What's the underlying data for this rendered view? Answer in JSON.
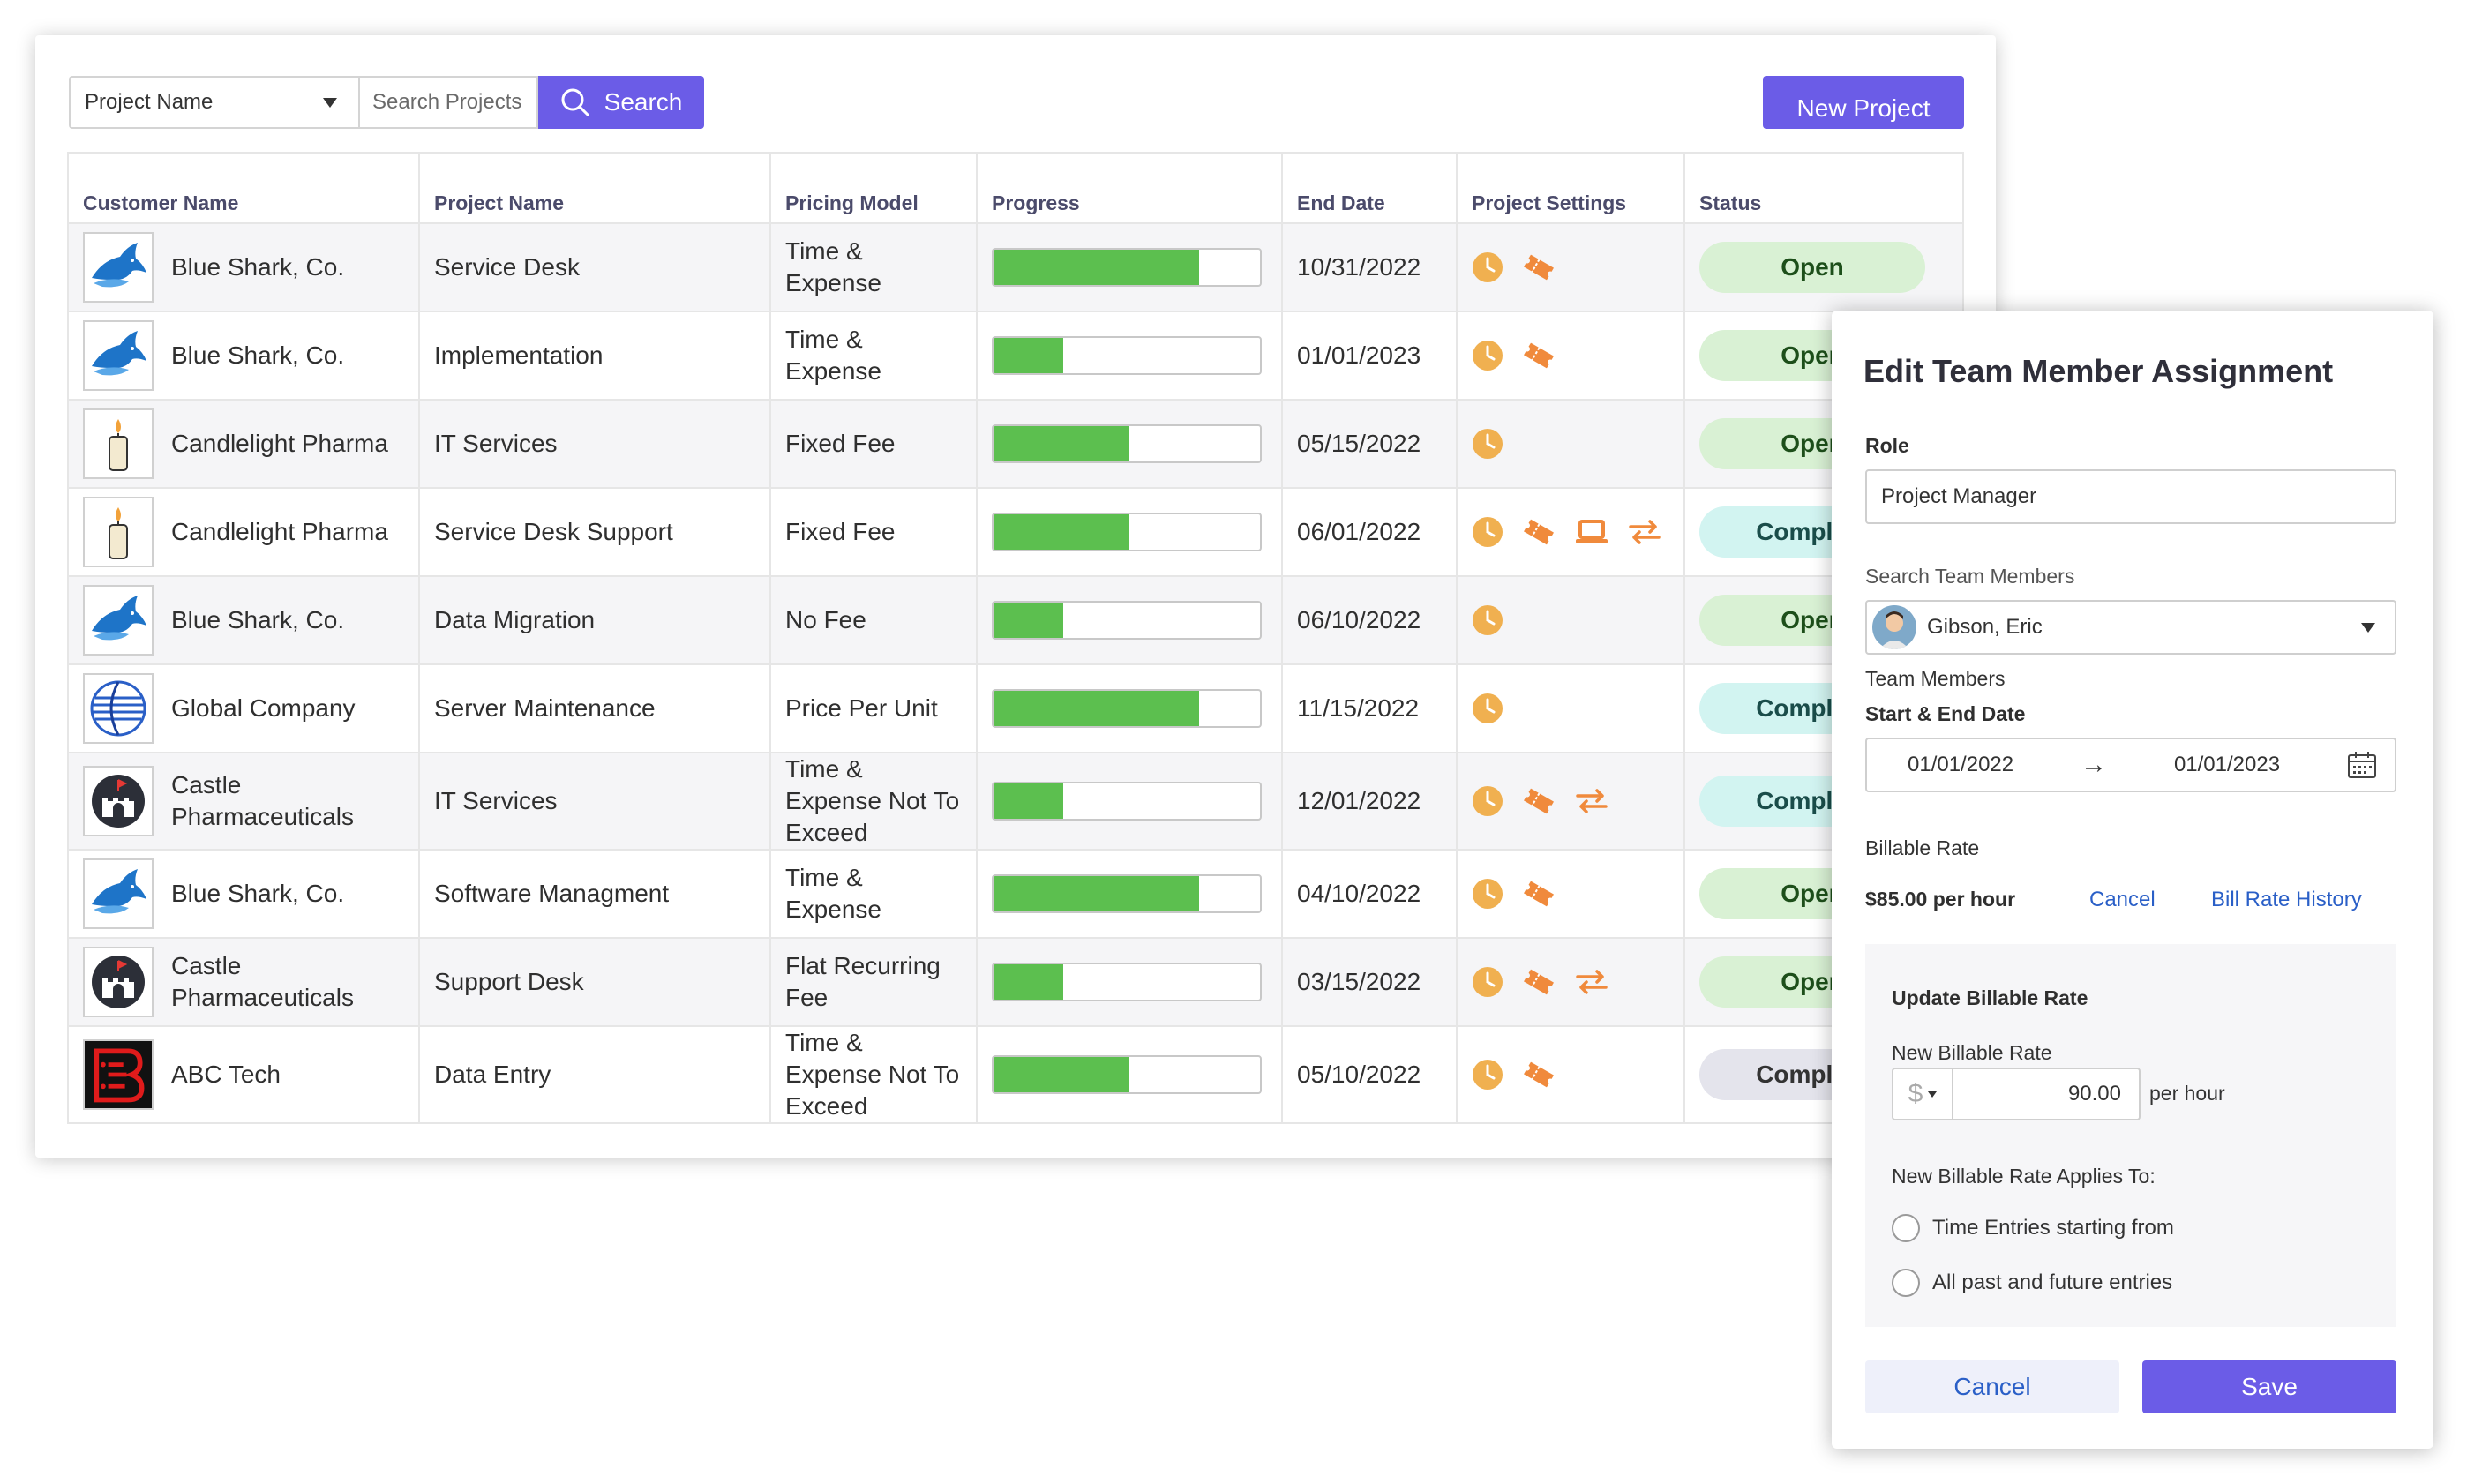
{
  "toolbar": {
    "filter_field": "Project Name",
    "search_placeholder": "Search Projects",
    "search_label": "Search",
    "new_label": "New Project"
  },
  "table": {
    "headers": [
      "Customer Name",
      "Project Name",
      "Pricing Model",
      "Progress",
      "End Date",
      "Project Settings",
      "Status"
    ],
    "rows": [
      {
        "customer": "Blue Shark, Co.",
        "logo": "shark-logo",
        "project": "Service Desk",
        "pricing": "Time & Expense",
        "progress": 0.77,
        "end_date": "10/31/2022",
        "settings": [
          "clock-icon",
          "ticket-icon"
        ],
        "status": "Open",
        "status_type": "open"
      },
      {
        "customer": "Blue Shark, Co.",
        "logo": "shark-logo",
        "project": "Implementation",
        "pricing": "Time & Expense",
        "progress": 0.26,
        "end_date": "01/01/2023",
        "settings": [
          "clock-icon",
          "ticket-icon"
        ],
        "status": "Open",
        "status_type": "open"
      },
      {
        "customer": "Candlelight Pharma",
        "logo": "candle-logo",
        "project": "IT Services",
        "pricing": "Fixed Fee",
        "progress": 0.51,
        "end_date": "05/15/2022",
        "settings": [
          "clock-icon"
        ],
        "status": "Open",
        "status_type": "open"
      },
      {
        "customer": "Candlelight Pharma",
        "logo": "candle-logo",
        "project": "Service Desk Support",
        "pricing": "Fixed Fee",
        "progress": 0.51,
        "end_date": "06/01/2022",
        "settings": [
          "clock-icon",
          "ticket-icon",
          "laptop-icon",
          "transfer-icon"
        ],
        "status": "Complete",
        "status_type": "complete"
      },
      {
        "customer": "Blue Shark, Co.",
        "logo": "shark-logo",
        "project": "Data Migration",
        "pricing": "No Fee",
        "progress": 0.26,
        "end_date": "06/10/2022",
        "settings": [
          "clock-icon"
        ],
        "status": "Open",
        "status_type": "open"
      },
      {
        "customer": "Global Company",
        "logo": "globe-logo",
        "project": "Server Maintenance",
        "pricing": "Price Per Unit",
        "progress": 0.77,
        "end_date": "11/15/2022",
        "settings": [
          "clock-icon"
        ],
        "status": "Complete",
        "status_type": "complete"
      },
      {
        "customer": "Castle Pharmaceuticals",
        "logo": "castle-logo",
        "project": "IT Services",
        "pricing": "Time & Expense Not To Exceed",
        "progress": 0.26,
        "end_date": "12/01/2022",
        "settings": [
          "clock-icon",
          "ticket-icon",
          "transfer-icon"
        ],
        "status": "Complete",
        "status_type": "complete"
      },
      {
        "customer": "Blue Shark, Co.",
        "logo": "shark-logo",
        "project": "Software Managment",
        "pricing": "Time & Expense",
        "progress": 0.77,
        "end_date": "04/10/2022",
        "settings": [
          "clock-icon",
          "ticket-icon"
        ],
        "status": "Open",
        "status_type": "open"
      },
      {
        "customer": "Castle Pharmaceuticals",
        "logo": "castle-logo",
        "project": "Support Desk",
        "pricing": "Flat Recurring Fee",
        "progress": 0.26,
        "end_date": "03/15/2022",
        "settings": [
          "clock-icon",
          "ticket-icon",
          "transfer-icon"
        ],
        "status": "Open",
        "status_type": "open"
      },
      {
        "customer": "ABC Tech",
        "logo": "abc-logo",
        "project": "Data Entry",
        "pricing": "Time & Expense Not To Exceed",
        "progress": 0.51,
        "end_date": "05/10/2022",
        "settings": [
          "clock-icon",
          "ticket-icon"
        ],
        "status": "Complete",
        "status_type": "grey"
      }
    ]
  },
  "modal": {
    "title": "Edit Team Member Assignment",
    "role_label": "Role",
    "role_value": "Project Manager",
    "search_members_label": "Search Team Members",
    "member_value": "Gibson, Eric",
    "team_members_label": "Team Members",
    "date_label": "Start & End Date",
    "start_date": "01/01/2022",
    "arrow": "→",
    "end_date": "01/01/2023",
    "billable_label": "Billable Rate",
    "billable_value": "$85.00 per hour",
    "cancel_link": "Cancel",
    "history_link": "Bill Rate History",
    "update_title": "Update Billable Rate",
    "new_rate_label": "New Billable Rate",
    "currency_symbol": "$",
    "new_rate_value": "90.00",
    "per_hour": "per hour",
    "applies_label": "New Billable Rate Applies To:",
    "option_1": "Time Entries starting from",
    "option_2": "All past and future entries",
    "cancel_button": "Cancel",
    "save_button": "Save"
  },
  "colors": {
    "accent": "#6b5ce7",
    "progress": "#5cbf4f",
    "icon_orange": "#f08a3c",
    "clock": "#f0b050",
    "link": "#2a5fc7"
  }
}
